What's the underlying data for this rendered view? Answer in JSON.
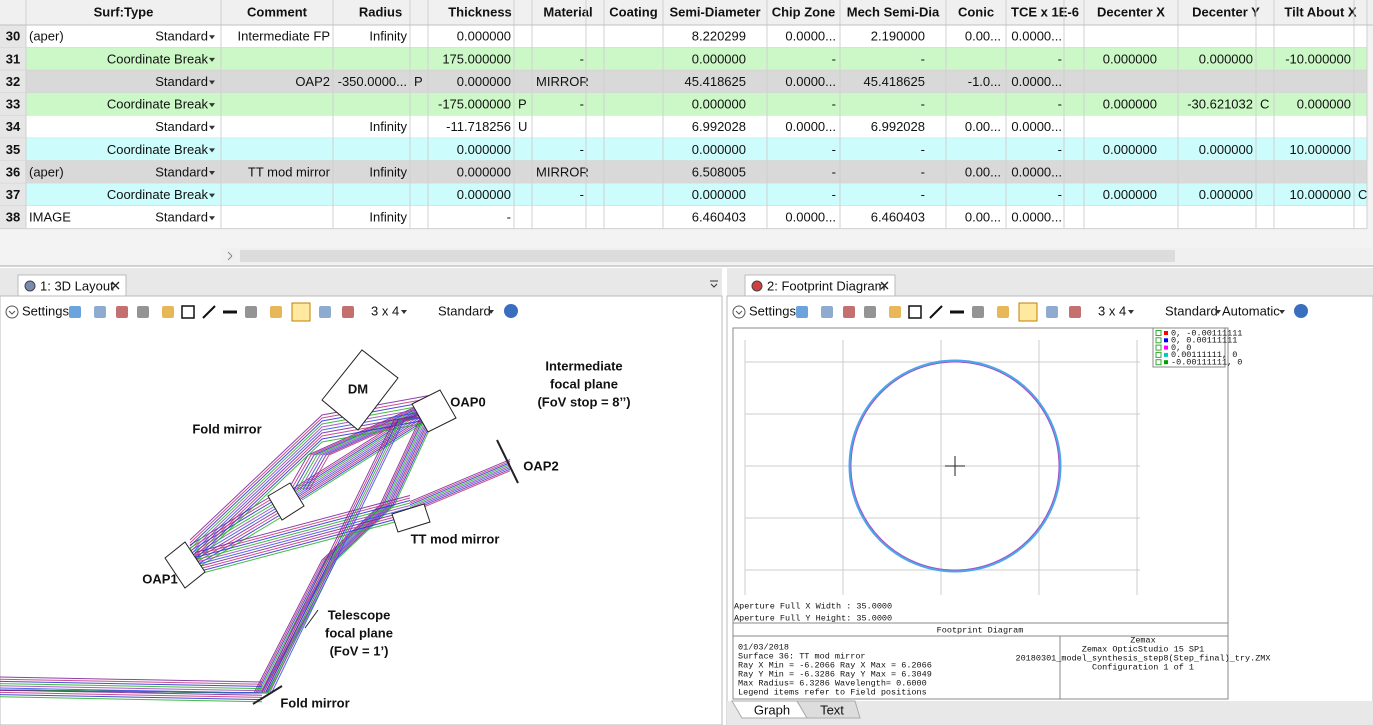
{
  "table": {
    "headers": [
      "Surf:Type",
      "Comment",
      "Radius",
      "Thickness",
      "Material",
      "Coating",
      "Semi-Diameter",
      "Chip Zone",
      "Mech Semi-Dia",
      "Conic",
      "TCE x 1E-6",
      "Decenter X",
      "Decenter Y",
      "Tilt About X"
    ],
    "rows": [
      {
        "num": 30,
        "name": "(aper)",
        "type": "Standard",
        "comment": "Intermediate FP",
        "radius": "Infinity",
        "thickness": "0.000000",
        "semi_diameter": "8.220299",
        "chip_zone": "0.0000...",
        "mech_semi_dia": "2.190000",
        "conic": "0.00...",
        "tce": "0.0000...",
        "color": "#ffffff"
      },
      {
        "num": 31,
        "type": "Coordinate Break",
        "thickness": "175.000000",
        "material": "-",
        "semi_diameter": "0.000000",
        "chip_zone": "-",
        "mech_semi_dia": "-",
        "tce": "-",
        "decenter_x": "0.000000",
        "decenter_y": "0.000000",
        "tilt_x": "-10.000000",
        "color": "#ccf8c8"
      },
      {
        "num": 32,
        "type": "Standard",
        "comment": "OAP2",
        "radius": "-350.0000...",
        "radius_solve": "P",
        "thickness": "0.000000",
        "material": "MIRROR",
        "semi_diameter": "45.418625",
        "chip_zone": "0.0000...",
        "mech_semi_dia": "45.418625",
        "conic": "-1.0...",
        "tce": "0.0000...",
        "color": "#d9d9d9"
      },
      {
        "num": 33,
        "type": "Coordinate Break",
        "thickness": "-175.000000",
        "thickness_solve": "P",
        "material": "-",
        "semi_diameter": "0.000000",
        "chip_zone": "-",
        "mech_semi_dia": "-",
        "tce": "-",
        "decenter_x": "0.000000",
        "decenter_y": "-30.621032",
        "decenter_y_solve": "C",
        "tilt_x": "0.000000",
        "color": "#ccf8c8"
      },
      {
        "num": 34,
        "type": "Standard",
        "radius": "Infinity",
        "thickness": "-11.718256",
        "thickness_solve": "U",
        "semi_diameter": "6.992028",
        "chip_zone": "0.0000...",
        "mech_semi_dia": "6.992028",
        "conic": "0.00...",
        "tce": "0.0000...",
        "color": "#ffffff"
      },
      {
        "num": 35,
        "type": "Coordinate Break",
        "thickness": "0.000000",
        "material": "-",
        "semi_diameter": "0.000000",
        "chip_zone": "-",
        "mech_semi_dia": "-",
        "tce": "-",
        "decenter_x": "0.000000",
        "decenter_y": "0.000000",
        "tilt_x": "10.000000",
        "color": "#ccfcfc"
      },
      {
        "num": 36,
        "name": "(aper)",
        "type": "Standard",
        "comment": "TT mod mirror",
        "radius": "Infinity",
        "thickness": "0.000000",
        "material": "MIRROR",
        "semi_diameter": "6.508005",
        "chip_zone": "-",
        "mech_semi_dia": "-",
        "conic": "0.00...",
        "tce": "0.0000...",
        "color": "#d9d9d9"
      },
      {
        "num": 37,
        "type": "Coordinate Break",
        "thickness": "0.000000",
        "material": "-",
        "semi_diameter": "0.000000",
        "chip_zone": "-",
        "mech_semi_dia": "-",
        "tce": "-",
        "decenter_x": "0.000000",
        "decenter_y": "0.000000",
        "tilt_x": "10.000000",
        "tilt_x_solve": "C",
        "color": "#ccfcfc"
      },
      {
        "num": 38,
        "name": "IMAGE",
        "type": "Standard",
        "radius": "Infinity",
        "thickness": "-",
        "semi_diameter": "6.460403",
        "chip_zone": "0.0000...",
        "mech_semi_dia": "6.460403",
        "conic": "0.00...",
        "tce": "0.0000...",
        "color": "#ffffff"
      }
    ]
  },
  "layout_panel": {
    "tab": "1: 3D Layout",
    "settings": "Settings",
    "grid": "3 x 4",
    "mode": "Standard",
    "labels": [
      {
        "lines": [
          "DM"
        ]
      },
      {
        "lines": [
          "OAP0"
        ]
      },
      {
        "lines": [
          "Intermediate",
          "focal plane",
          "(FoV stop = 8’’)"
        ]
      },
      {
        "lines": [
          "Fold mirror"
        ]
      },
      {
        "lines": [
          "OAP2"
        ]
      },
      {
        "lines": [
          "TT mod mirror"
        ]
      },
      {
        "lines": [
          "OAP1"
        ]
      },
      {
        "lines": [
          "Telescope",
          "focal plane",
          "(FoV = 1’)"
        ]
      },
      {
        "lines": [
          "Fold mirror"
        ]
      }
    ]
  },
  "footprint_panel": {
    "tab": "2: Footprint Diagram",
    "settings": "Settings",
    "grid": "3 x 4",
    "mode": "Standard",
    "scale": "Automatic",
    "legend": [
      {
        "label": "0, -0.00111111",
        "color": "#ff0000"
      },
      {
        "label": "0, 0.00111111",
        "color": "#0000ff"
      },
      {
        "label": "0, 0",
        "color": "#ff00ff"
      },
      {
        "label": "0.00111111, 0",
        "color": "#00c8c8"
      },
      {
        "label": "-0.00111111, 0",
        "color": "#00a000"
      }
    ],
    "aperture": [
      "Aperture Full X Width : 35.0000",
      "Aperture Full Y Height: 35.0000"
    ],
    "footer_title": "Footprint Diagram",
    "footer_left": [
      "01/03/2018",
      "Surface 36: TT mod mirror",
      "Ray X Min =   -6.2066 Ray X Max =    6.2066",
      "Ray Y Min =   -6.3286 Ray Y Max =    6.3049",
      "Max Radius=    6.3286 Wavelength=    0.6000",
      "Legend items refer to Field positions"
    ],
    "footer_right": [
      "Zemax",
      "Zemax OpticStudio 15 SP1",
      "20180301_model_synthesis_step8(Step_final)_try.ZMX",
      "Configuration 1 of 1"
    ],
    "bottom_tabs": [
      "Graph",
      "Text"
    ]
  }
}
